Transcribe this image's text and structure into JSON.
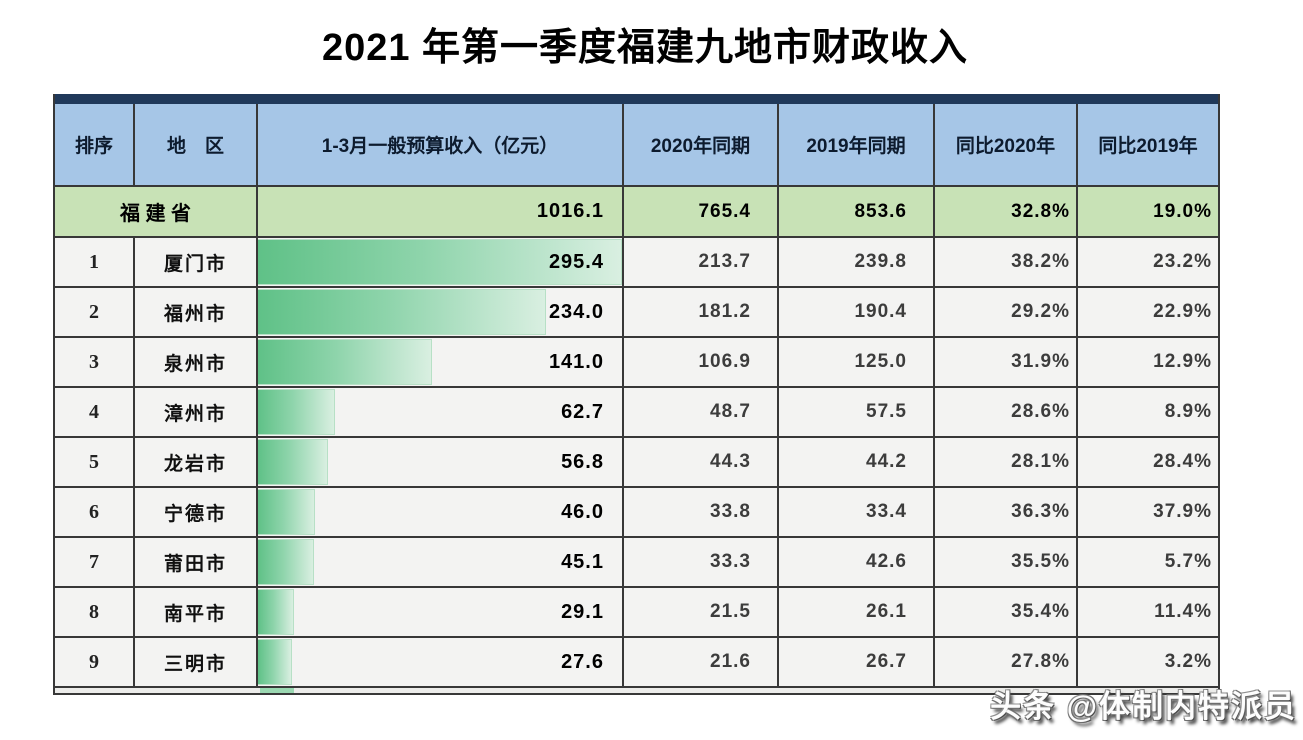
{
  "title": "2021 年第一季度福建九地市财政收入",
  "watermark": "头条 @体制内特派员",
  "colors": {
    "top_bar": "#20395a",
    "header_bg": "#a6c6e7",
    "province_row_bg": "#c8e2b6",
    "data_row_bg": "#f3f3f2",
    "grid_border": "#383838",
    "bar_start": "#5fc187",
    "bar_end": "#d9efe1"
  },
  "table": {
    "columns": [
      "排序",
      "地　区",
      "1-3月一般预算收入（亿元）",
      "2020年同期",
      "2019年同期",
      "同比2020年",
      "同比2019年"
    ],
    "bar_max": 295.4,
    "province_row": {
      "region": "福 建 省",
      "revenue": "1016.1",
      "y2020": "765.4",
      "y2019": "853.6",
      "yoy2020": "32.8%",
      "yoy2019": "19.0%"
    },
    "rows": [
      {
        "rank": "1",
        "city": "厦门市",
        "revenue": 295.4,
        "y2020": "213.7",
        "y2019": "239.8",
        "yoy2020": "38.2%",
        "yoy2019": "23.2%"
      },
      {
        "rank": "2",
        "city": "福州市",
        "revenue": 234.0,
        "y2020": "181.2",
        "y2019": "190.4",
        "yoy2020": "29.2%",
        "yoy2019": "22.9%"
      },
      {
        "rank": "3",
        "city": "泉州市",
        "revenue": 141.0,
        "y2020": "106.9",
        "y2019": "125.0",
        "yoy2020": "31.9%",
        "yoy2019": "12.9%"
      },
      {
        "rank": "4",
        "city": "漳州市",
        "revenue": 62.7,
        "y2020": "48.7",
        "y2019": "57.5",
        "yoy2020": "28.6%",
        "yoy2019": "8.9%"
      },
      {
        "rank": "5",
        "city": "龙岩市",
        "revenue": 56.8,
        "y2020": "44.3",
        "y2019": "44.2",
        "yoy2020": "28.1%",
        "yoy2019": "28.4%"
      },
      {
        "rank": "6",
        "city": "宁德市",
        "revenue": 46.0,
        "y2020": "33.8",
        "y2019": "33.4",
        "yoy2020": "36.3%",
        "yoy2019": "37.9%"
      },
      {
        "rank": "7",
        "city": "莆田市",
        "revenue": 45.1,
        "y2020": "33.3",
        "y2019": "42.6",
        "yoy2020": "35.5%",
        "yoy2019": "5.7%"
      },
      {
        "rank": "8",
        "city": "南平市",
        "revenue": 29.1,
        "y2020": "21.5",
        "y2019": "26.1",
        "yoy2020": "35.4%",
        "yoy2019": "11.4%"
      },
      {
        "rank": "9",
        "city": "三明市",
        "revenue": 27.6,
        "y2020": "21.6",
        "y2019": "26.7",
        "yoy2020": "27.8%",
        "yoy2019": "3.2%"
      }
    ]
  },
  "chart_data": {
    "type": "table",
    "title": "2021 年第一季度福建九地市财政收入",
    "columns": [
      "排序",
      "地区",
      "1-3月一般预算收入（亿元）",
      "2020年同期",
      "2019年同期",
      "同比2020年",
      "同比2019年"
    ],
    "rows": [
      [
        "",
        "福建省",
        1016.1,
        765.4,
        853.6,
        "32.8%",
        "19.0%"
      ],
      [
        "1",
        "厦门市",
        295.4,
        213.7,
        239.8,
        "38.2%",
        "23.2%"
      ],
      [
        "2",
        "福州市",
        234.0,
        181.2,
        190.4,
        "29.2%",
        "22.9%"
      ],
      [
        "3",
        "泉州市",
        141.0,
        106.9,
        125.0,
        "31.9%",
        "12.9%"
      ],
      [
        "4",
        "漳州市",
        62.7,
        48.7,
        57.5,
        "28.6%",
        "8.9%"
      ],
      [
        "5",
        "龙岩市",
        56.8,
        44.3,
        44.2,
        "28.1%",
        "28.4%"
      ],
      [
        "6",
        "宁德市",
        46.0,
        33.8,
        33.4,
        "36.3%",
        "37.9%"
      ],
      [
        "7",
        "莆田市",
        45.1,
        33.3,
        42.6,
        "35.5%",
        "5.7%"
      ],
      [
        "8",
        "南平市",
        29.1,
        21.5,
        26.1,
        "35.4%",
        "11.4%"
      ],
      [
        "9",
        "三明市",
        27.6,
        21.6,
        26.7,
        "27.8%",
        "3.2%"
      ]
    ],
    "databar": {
      "column": "1-3月一般预算收入（亿元）",
      "max": 295.4,
      "applies_to": "city rows only"
    },
    "layout": {
      "legend": "none",
      "grid": "all-borders"
    }
  }
}
